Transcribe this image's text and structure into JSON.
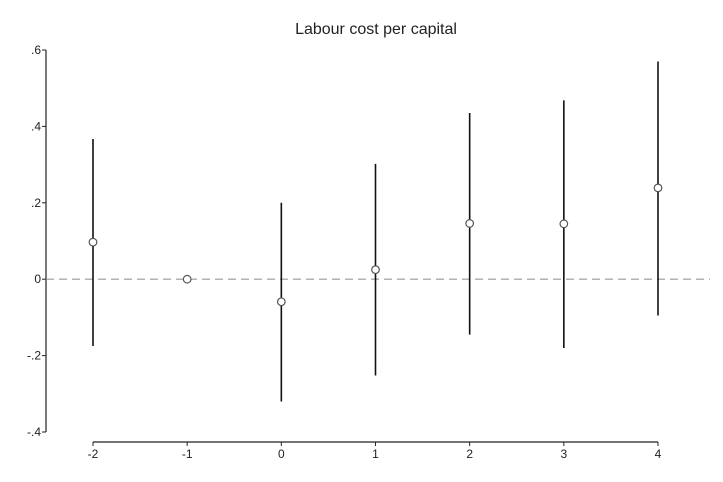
{
  "chart_data": {
    "type": "scatter",
    "title": "Labour cost per capital",
    "xlabel": "",
    "ylabel": "",
    "x_ticks": [
      "-2",
      "-1",
      "0",
      "1",
      "2",
      "3",
      "4"
    ],
    "y_ticks": [
      ".6",
      ".4",
      ".2",
      "0",
      "-.2",
      "-.4"
    ],
    "y_tick_values": [
      0.6,
      0.4,
      0.2,
      0,
      -0.2,
      -0.4
    ],
    "xlim": [
      -2,
      4
    ],
    "ylim": [
      -0.4,
      0.6
    ],
    "grid": false,
    "reference_line": {
      "y": 0,
      "style": "dashed",
      "color": "#999999"
    },
    "marker": "hollow-circle",
    "colors": {
      "marker": "#555555",
      "ci_line": "#111111",
      "axis": "#222222"
    },
    "series": [
      {
        "x": [
          -2,
          -1,
          0,
          1,
          2,
          3,
          4
        ],
        "y": [
          0.097,
          0.0,
          -0.059,
          0.025,
          0.146,
          0.145,
          0.239
        ],
        "ci_low": [
          -0.175,
          null,
          -0.32,
          -0.252,
          -0.145,
          -0.18,
          -0.095
        ],
        "ci_high": [
          0.367,
          null,
          0.2,
          0.302,
          0.435,
          0.468,
          0.57
        ]
      }
    ]
  }
}
